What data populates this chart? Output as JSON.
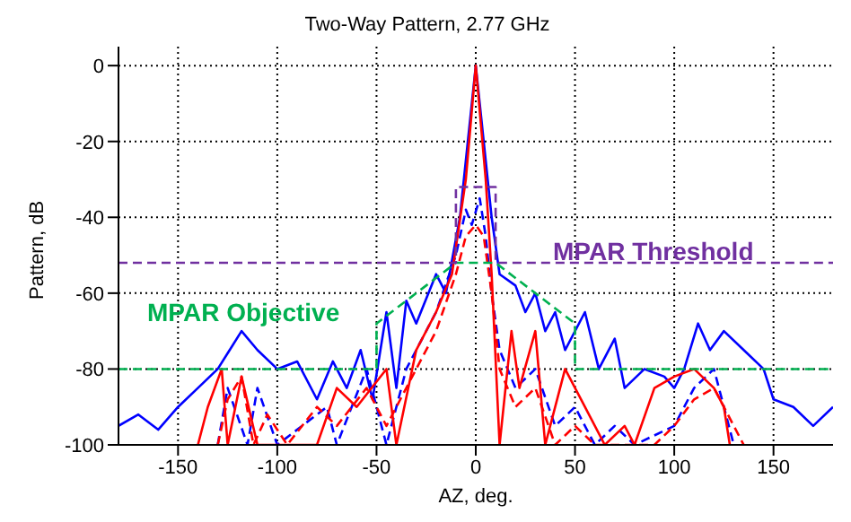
{
  "chart_data": {
    "type": "line",
    "title": "Two-Way Pattern, 2.77 GHz",
    "xlabel": "AZ, deg.",
    "ylabel": "Pattern, dB",
    "xlim": [
      -180,
      180
    ],
    "xticks": [
      -150,
      -100,
      -50,
      0,
      50,
      100,
      150
    ],
    "ylim": [
      -100,
      5
    ],
    "yticks": [
      -100,
      -80,
      -60,
      -40,
      -20,
      0
    ],
    "grid": true,
    "legend": false,
    "marker": "none",
    "series": [
      {
        "color": "#0000ff",
        "line_style": "solid",
        "x": [
          -180,
          -170,
          -160,
          -150,
          -140,
          -130,
          -118,
          -110,
          -100,
          -90,
          -80,
          -72,
          -65,
          -58,
          -52,
          -45,
          -40,
          -35,
          -30,
          -20,
          -15,
          -8,
          -4,
          0,
          4,
          8,
          12,
          20,
          25,
          30,
          35,
          40,
          45,
          55,
          62,
          70,
          75,
          85,
          95,
          100,
          105,
          112,
          118,
          125,
          135,
          145,
          150,
          160,
          170,
          180
        ],
        "values": [
          -95,
          -92,
          -96,
          -90,
          -85,
          -80,
          -70,
          -75,
          -80,
          -78,
          -88,
          -78,
          -85,
          -75,
          -88,
          -65,
          -85,
          -62,
          -68,
          -55,
          -60,
          -40,
          -20,
          0,
          -20,
          -40,
          -55,
          -58,
          -65,
          -60,
          -70,
          -65,
          -75,
          -65,
          -80,
          -72,
          -85,
          -80,
          -82,
          -85,
          -80,
          -68,
          -75,
          -70,
          -75,
          -80,
          -88,
          -90,
          -95,
          -90
        ]
      },
      {
        "color": "#0000ff",
        "line_style": "dashed",
        "x": [
          -130,
          -125,
          -115,
          -110,
          -100,
          -75,
          -70,
          -55,
          -45,
          -35,
          -20,
          -10,
          -5,
          -2,
          2,
          5,
          8,
          12,
          20,
          30,
          40,
          50,
          60,
          70,
          80,
          100,
          110,
          120,
          125,
          130
        ],
        "values": [
          -100,
          -85,
          -100,
          -85,
          -100,
          -90,
          -100,
          -80,
          -100,
          -80,
          -65,
          -50,
          -38,
          -42,
          -35,
          -45,
          -60,
          -75,
          -85,
          -80,
          -95,
          -90,
          -100,
          -95,
          -100,
          -95,
          -85,
          -80,
          -90,
          -100
        ]
      },
      {
        "color": "#ff0000",
        "line_style": "solid",
        "x": [
          -140,
          -135,
          -128,
          -125,
          -118,
          -110,
          -80,
          -70,
          -60,
          -45,
          -40,
          -30,
          -20,
          -12,
          -5,
          0,
          5,
          8,
          12,
          18,
          22,
          30,
          35,
          45,
          55,
          65,
          75,
          80,
          90,
          100,
          110,
          120,
          125,
          128
        ],
        "values": [
          -100,
          -90,
          -80,
          -100,
          -82,
          -100,
          -100,
          -85,
          -90,
          -80,
          -100,
          -75,
          -65,
          -55,
          -30,
          0,
          -30,
          -55,
          -100,
          -70,
          -85,
          -70,
          -100,
          -80,
          -90,
          -100,
          -95,
          -100,
          -85,
          -82,
          -80,
          -85,
          -90,
          -100
        ]
      },
      {
        "color": "#ff0000",
        "line_style": "dashed",
        "x": [
          -130,
          -125,
          -118,
          -112,
          -105,
          -95,
          -80,
          -70,
          -55,
          -45,
          -30,
          -20,
          -10,
          -5,
          0,
          4,
          8,
          12,
          20,
          30,
          40,
          50,
          60,
          90,
          100,
          110,
          120,
          130,
          135
        ],
        "values": [
          -100,
          -88,
          -82,
          -100,
          -92,
          -100,
          -90,
          -95,
          -85,
          -95,
          -80,
          -70,
          -55,
          -45,
          -42,
          -45,
          -60,
          -80,
          -90,
          -85,
          -100,
          -95,
          -100,
          -100,
          -95,
          -88,
          -85,
          -95,
          -100
        ]
      },
      {
        "color": "#00b050",
        "line_style": "dashed",
        "x": [
          -180,
          -50,
          -50,
          -25,
          -10,
          10,
          50,
          50,
          180
        ],
        "values": [
          -80,
          -80,
          -68,
          -58,
          -52,
          -52,
          -68,
          -80,
          -80
        ]
      },
      {
        "color": "#7030a0",
        "line_style": "dashed",
        "x": [
          -180,
          -10,
          -10,
          10,
          10,
          180
        ],
        "values": [
          -52,
          -52,
          -32,
          -32,
          -52,
          -52
        ]
      }
    ],
    "annotations": [
      "MPAR Objective",
      "MPAR Threshold"
    ]
  }
}
